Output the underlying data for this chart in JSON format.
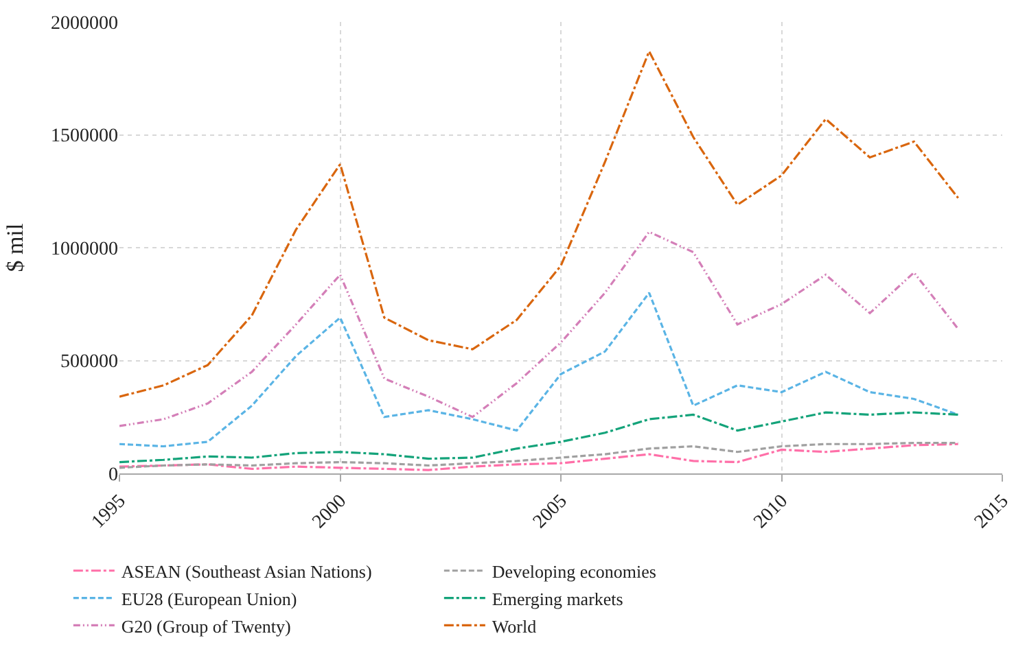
{
  "chart_data": {
    "type": "line",
    "ylabel": "$ mil",
    "x": [
      1995,
      1996,
      1997,
      1998,
      1999,
      2000,
      2001,
      2002,
      2003,
      2004,
      2005,
      2006,
      2007,
      2008,
      2009,
      2010,
      2011,
      2012,
      2013,
      2014
    ],
    "series": [
      {
        "name": "ASEAN (Southeast Asian Nations)",
        "color": "#ff6fa8",
        "line_style": "dashdot",
        "values": [
          30000,
          35000,
          40000,
          20000,
          30000,
          25000,
          20000,
          15000,
          30000,
          40000,
          45000,
          65000,
          85000,
          55000,
          50000,
          105000,
          95000,
          110000,
          125000,
          130000
        ]
      },
      {
        "name": "Developing economies",
        "color": "#a0a0a0",
        "line_style": "dashed",
        "values": [
          25000,
          35000,
          40000,
          35000,
          45000,
          50000,
          45000,
          35000,
          45000,
          55000,
          70000,
          85000,
          110000,
          120000,
          95000,
          120000,
          130000,
          130000,
          135000,
          135000
        ]
      },
      {
        "name": "EU28 (European Union)",
        "color": "#5ab4e5",
        "line_style": "dashed",
        "values": [
          130000,
          120000,
          140000,
          300000,
          520000,
          690000,
          250000,
          280000,
          240000,
          190000,
          440000,
          540000,
          800000,
          300000,
          390000,
          360000,
          450000,
          360000,
          330000,
          260000
        ]
      },
      {
        "name": "Emerging markets",
        "color": "#14a37a",
        "line_style": "dashdot",
        "values": [
          50000,
          60000,
          75000,
          70000,
          90000,
          95000,
          85000,
          65000,
          70000,
          110000,
          140000,
          180000,
          240000,
          260000,
          190000,
          230000,
          270000,
          260000,
          270000,
          260000
        ]
      },
      {
        "name": "G20 (Group of Twenty)",
        "color": "#d47fb8",
        "line_style": "dotted",
        "values": [
          210000,
          240000,
          310000,
          450000,
          660000,
          880000,
          420000,
          340000,
          250000,
          400000,
          580000,
          800000,
          1070000,
          980000,
          660000,
          750000,
          880000,
          710000,
          890000,
          640000
        ]
      },
      {
        "name": "World",
        "color": "#d9660e",
        "line_style": "dashdot",
        "values": [
          340000,
          390000,
          480000,
          700000,
          1080000,
          1370000,
          690000,
          590000,
          550000,
          680000,
          920000,
          1380000,
          1870000,
          1490000,
          1190000,
          1320000,
          1570000,
          1400000,
          1470000,
          1220000
        ]
      }
    ],
    "xlim": [
      1995,
      2015
    ],
    "xticks": [
      1995,
      2000,
      2005,
      2010,
      2015
    ],
    "ylim": [
      0,
      2000000
    ],
    "yticks": [
      0,
      500000,
      1000000,
      1500000,
      2000000
    ],
    "grid": true,
    "legend": "bottom"
  }
}
